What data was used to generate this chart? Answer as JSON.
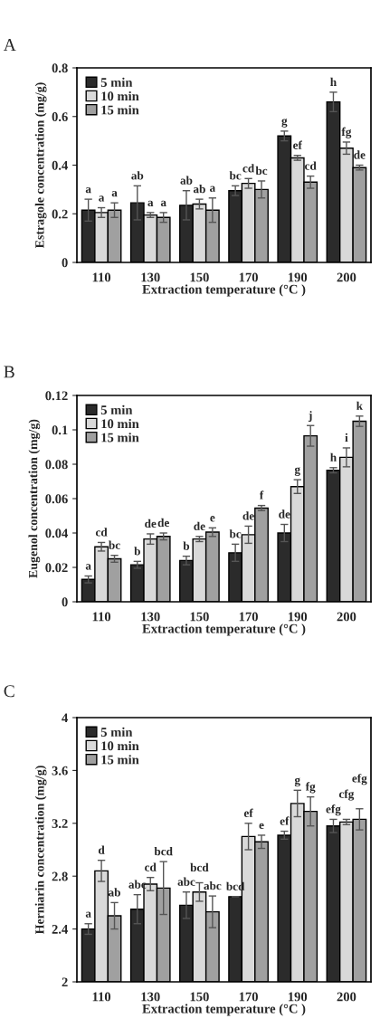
{
  "chart_data": [
    {
      "type": "bar",
      "title": "A",
      "xlabel": "Extraction temperature (°C )",
      "ylabel": "Estragole concentration (mg/g)",
      "categories": [
        "110",
        "130",
        "150",
        "170",
        "190",
        "200"
      ],
      "ylim": [
        0,
        0.8
      ],
      "yticks": [
        0,
        0.2,
        0.4,
        0.6,
        0.8
      ],
      "legend": "top left",
      "grid": false,
      "series": [
        {
          "name": "5 min",
          "color": "#2b2b2b",
          "values": [
            0.215,
            0.245,
            0.235,
            0.295,
            0.52,
            0.66
          ],
          "errors": [
            0.045,
            0.07,
            0.06,
            0.02,
            0.02,
            0.04
          ],
          "value_labels": [
            "a",
            "ab",
            "ab",
            "bc",
            "g",
            "h"
          ]
        },
        {
          "name": "10 min",
          "color": "#d9d9d9",
          "values": [
            0.205,
            0.195,
            0.24,
            0.325,
            0.43,
            0.47
          ],
          "errors": [
            0.02,
            0.01,
            0.02,
            0.02,
            0.01,
            0.025
          ],
          "value_labels": [
            "a",
            "a",
            "ab",
            "cd",
            "ef",
            "fg"
          ]
        },
        {
          "name": "15 min",
          "color": "#a0a0a0",
          "values": [
            0.215,
            0.185,
            0.215,
            0.3,
            0.33,
            0.39
          ],
          "errors": [
            0.03,
            0.02,
            0.05,
            0.035,
            0.025,
            0.01
          ],
          "value_labels": [
            "a",
            "a",
            "a",
            "bc",
            "cd",
            "de"
          ]
        }
      ]
    },
    {
      "type": "bar",
      "title": "B",
      "xlabel": "Extraction temperature (°C )",
      "ylabel": "Eugenol concentration (mg/g)",
      "categories": [
        "110",
        "130",
        "150",
        "170",
        "190",
        "200"
      ],
      "ylim": [
        0,
        0.12
      ],
      "yticks": [
        0,
        0.02,
        0.04,
        0.06,
        0.08,
        0.1,
        0.12
      ],
      "legend": "top left",
      "grid": false,
      "series": [
        {
          "name": "5 min",
          "color": "#2b2b2b",
          "values": [
            0.013,
            0.0215,
            0.024,
            0.0285,
            0.04,
            0.0765
          ],
          "errors": [
            0.002,
            0.002,
            0.0025,
            0.005,
            0.005,
            0.0015
          ],
          "value_labels": [
            "a",
            "b",
            "b",
            "bc",
            "de",
            "h"
          ]
        },
        {
          "name": "10 min",
          "color": "#d9d9d9",
          "values": [
            0.032,
            0.0365,
            0.0365,
            0.039,
            0.067,
            0.084
          ],
          "errors": [
            0.0025,
            0.003,
            0.0015,
            0.005,
            0.004,
            0.0055
          ],
          "value_labels": [
            "cd",
            "de",
            "de",
            "de",
            "g",
            "i"
          ]
        },
        {
          "name": "15 min",
          "color": "#a0a0a0",
          "values": [
            0.025,
            0.038,
            0.0405,
            0.0545,
            0.0965,
            0.105
          ],
          "errors": [
            0.002,
            0.002,
            0.0025,
            0.0015,
            0.006,
            0.003
          ],
          "value_labels": [
            "bc",
            "de",
            "e",
            "f",
            "j",
            "k"
          ]
        }
      ]
    },
    {
      "type": "bar",
      "title": "C",
      "xlabel": "Extraction temperature (°C )",
      "ylabel": "Herniarin concentration (mg/g)",
      "categories": [
        "110",
        "130",
        "150",
        "170",
        "190",
        "200"
      ],
      "ylim": [
        2,
        4
      ],
      "yticks": [
        2,
        2.4,
        2.8,
        3.2,
        3.6,
        4
      ],
      "legend": "top left",
      "grid": false,
      "series": [
        {
          "name": "5 min",
          "color": "#2b2b2b",
          "values": [
            2.4,
            2.55,
            2.58,
            2.645,
            3.11,
            3.18
          ],
          "errors": [
            0.04,
            0.11,
            0.1,
            null,
            0.03,
            0.05
          ],
          "value_labels": [
            "a",
            "abc",
            "abc",
            "bcd",
            "ef",
            "efg"
          ]
        },
        {
          "name": "10 min",
          "color": "#d9d9d9",
          "values": [
            2.84,
            2.74,
            2.68,
            3.1,
            3.35,
            3.21
          ],
          "errors": [
            0.08,
            0.05,
            0.07,
            0.1,
            0.1,
            0.02
          ],
          "value_labels": [
            "d",
            "cd",
            "bcd",
            "ef",
            "g",
            "cfg"
          ]
        },
        {
          "name": "15 min",
          "color": "#a0a0a0",
          "values": [
            2.5,
            2.71,
            2.53,
            3.06,
            3.29,
            3.23
          ],
          "errors": [
            0.1,
            0.2,
            0.12,
            0.05,
            0.11,
            0.08
          ],
          "value_labels": [
            "ab",
            "bcd",
            "abc",
            "e",
            "fg",
            "efg"
          ]
        }
      ]
    }
  ]
}
